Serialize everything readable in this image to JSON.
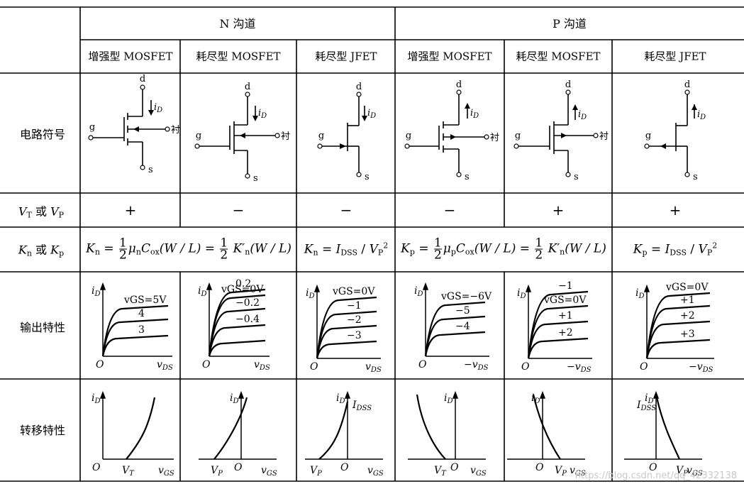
{
  "header": {
    "n_channel": "N 沟道",
    "p_channel": "P 沟道"
  },
  "types": [
    "增强型 MOSFET",
    "耗尽型 MOSFET",
    "耗尽型 JFET",
    "增强型 MOSFET",
    "耗尽型 MOSFET",
    "耗尽型 JFET"
  ],
  "rows": {
    "symbol": "电路符号",
    "vt_vp": {
      "V1": "V",
      "s1": "T",
      "mid": "或",
      "V2": "V",
      "s2": "P"
    },
    "kn_kp": {
      "K1": "K",
      "s1": "n",
      "mid": "或",
      "K2": "K",
      "s2": "p"
    },
    "output": "输出特性",
    "transfer": "转移特性"
  },
  "signs": [
    "+",
    "−",
    "−",
    "−",
    "+",
    "+"
  ],
  "formulas": {
    "n_enh": {
      "K": "K",
      "Ks": "n",
      "mu": "μ",
      "mus": "n",
      "C": "C",
      "Cs": "ox",
      "wl": "(W / L)",
      "kp": "K′",
      "kps": "n",
      "wl2": "(W / L)",
      "one": "1",
      "two": "2"
    },
    "n_jfet": {
      "K": "K",
      "Ks": "n",
      "I": "I",
      "Is": "DSS",
      "V": "V",
      "Vs": "P",
      "pow": "2"
    },
    "p_enh": {
      "K": "K",
      "Ks": "p",
      "mu": "μ",
      "mus": "p",
      "C": "C",
      "Cs": "ox",
      "wl": "(W / L)",
      "kp": "K′",
      "kps": "n",
      "wl2": "(W / L)",
      "one": "1",
      "two": "2"
    },
    "p_jfet": {
      "K": "K",
      "Ks": "p",
      "I": "I",
      "Is": "DSS",
      "V": "V",
      "Vs": "P",
      "pow": "2"
    }
  },
  "symbol_labels": {
    "d": "d",
    "s": "s",
    "g": "g",
    "sub": "衬",
    "iD": "i",
    "iDs": "D"
  },
  "output_labels": {
    "iD": "i",
    "iDs": "D",
    "O": "O",
    "vDS": "v",
    "vDSs": "DS",
    "neg": "−",
    "c1": [
      "vGS=5V",
      "4",
      "3"
    ],
    "c2": [
      "0.2",
      "vGS=0V",
      "−0.2",
      "−0.4"
    ],
    "c3": [
      "vGS=0V",
      "−1",
      "−2",
      "−3"
    ],
    "c4": [
      "vGS=−6V",
      "−5",
      "−4"
    ],
    "c5": [
      "−1",
      "vGS=0V",
      "+1",
      "+2"
    ],
    "c6": [
      "vGS=0V",
      "+1",
      "+2",
      "+3"
    ]
  },
  "transfer_labels": {
    "iD": "i",
    "iDs": "D",
    "O": "O",
    "vGS": "v",
    "vGSs": "GS",
    "VT": "V",
    "VTs": "T",
    "VP": "V",
    "VPs": "P",
    "IDSS": "I",
    "IDSSs": "DSS"
  },
  "watermark": "https://blog.csdn.net/qq_42332138"
}
